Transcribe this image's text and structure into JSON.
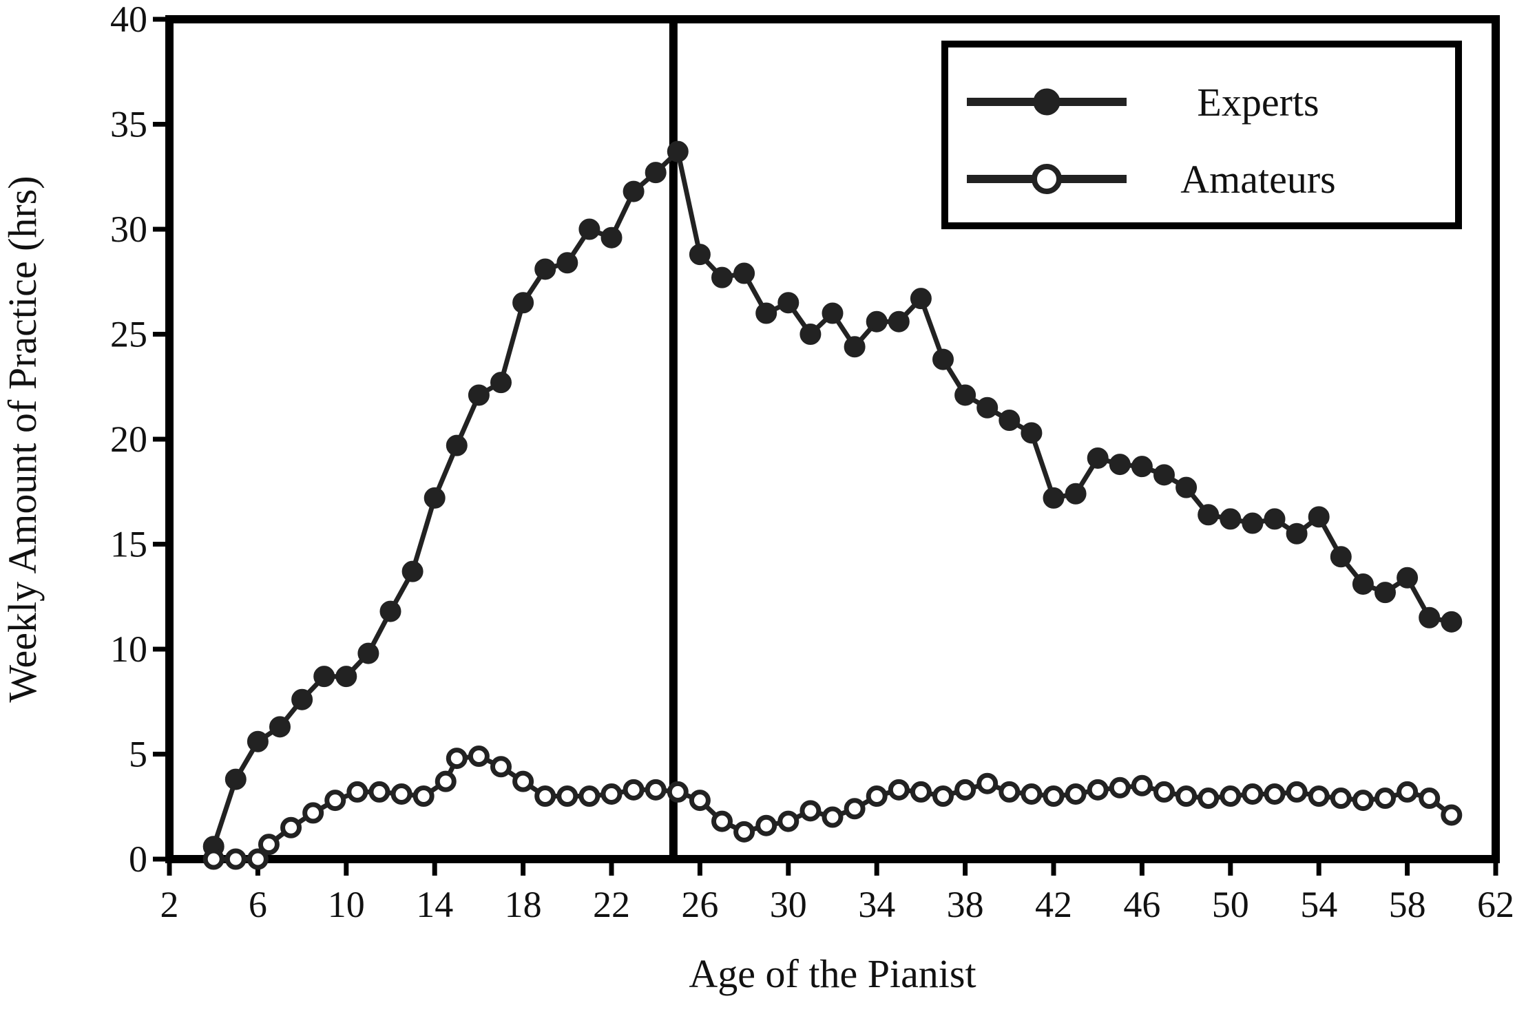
{
  "chart_data": {
    "type": "line",
    "title": "",
    "xlabel": "Age of the Pianist",
    "ylabel": "Weekly Amount of Practice (hrs)",
    "xlim": [
      2,
      62
    ],
    "ylim": [
      0,
      40
    ],
    "xticks": [
      2,
      6,
      10,
      14,
      18,
      22,
      26,
      30,
      34,
      38,
      42,
      46,
      50,
      54,
      58,
      62
    ],
    "yticks": [
      0,
      5,
      10,
      15,
      20,
      25,
      30,
      35,
      40
    ],
    "grid": false,
    "legend_position": "top-right",
    "reference_line_x": 24.8,
    "series": [
      {
        "name": "Experts",
        "marker": "filled-circle",
        "points": [
          [
            4,
            0.6
          ],
          [
            5,
            3.8
          ],
          [
            6,
            5.6
          ],
          [
            7,
            6.3
          ],
          [
            8,
            7.6
          ],
          [
            9,
            8.7
          ],
          [
            10,
            8.7
          ],
          [
            11,
            9.8
          ],
          [
            12,
            11.8
          ],
          [
            13,
            13.7
          ],
          [
            14,
            17.2
          ],
          [
            15,
            19.7
          ],
          [
            16,
            22.1
          ],
          [
            17,
            22.7
          ],
          [
            18,
            26.5
          ],
          [
            19,
            28.1
          ],
          [
            20,
            28.4
          ],
          [
            21,
            30.0
          ],
          [
            22,
            29.6
          ],
          [
            23,
            31.8
          ],
          [
            24,
            32.7
          ],
          [
            25,
            33.7
          ],
          [
            26,
            28.8
          ],
          [
            27,
            27.7
          ],
          [
            28,
            27.9
          ],
          [
            29,
            26.0
          ],
          [
            30,
            26.5
          ],
          [
            31,
            25.0
          ],
          [
            32,
            26.0
          ],
          [
            33,
            24.4
          ],
          [
            34,
            25.6
          ],
          [
            35,
            25.6
          ],
          [
            36,
            26.7
          ],
          [
            37,
            23.8
          ],
          [
            38,
            22.1
          ],
          [
            39,
            21.5
          ],
          [
            40,
            20.9
          ],
          [
            41,
            20.3
          ],
          [
            42,
            17.2
          ],
          [
            43,
            17.4
          ],
          [
            44,
            19.1
          ],
          [
            45,
            18.8
          ],
          [
            46,
            18.7
          ],
          [
            47,
            18.3
          ],
          [
            48,
            17.7
          ],
          [
            49,
            16.4
          ],
          [
            50,
            16.2
          ],
          [
            51,
            16.0
          ],
          [
            52,
            16.2
          ],
          [
            53,
            15.5
          ],
          [
            54,
            16.3
          ],
          [
            55,
            14.4
          ],
          [
            56,
            13.1
          ],
          [
            57,
            12.7
          ],
          [
            58,
            13.4
          ],
          [
            59,
            11.5
          ],
          [
            60,
            11.3
          ]
        ]
      },
      {
        "name": "Amateurs",
        "marker": "open-circle",
        "points": [
          [
            4,
            0.0
          ],
          [
            5,
            0.0
          ],
          [
            6,
            0.0
          ],
          [
            6.5,
            0.7
          ],
          [
            7.5,
            1.5
          ],
          [
            8.5,
            2.2
          ],
          [
            9.5,
            2.8
          ],
          [
            10.5,
            3.2
          ],
          [
            11.5,
            3.2
          ],
          [
            12.5,
            3.1
          ],
          [
            13.5,
            3.0
          ],
          [
            14.5,
            3.7
          ],
          [
            15,
            4.8
          ],
          [
            16,
            4.9
          ],
          [
            17,
            4.4
          ],
          [
            18,
            3.7
          ],
          [
            19,
            3.0
          ],
          [
            20,
            3.0
          ],
          [
            21,
            3.0
          ],
          [
            22,
            3.1
          ],
          [
            23,
            3.3
          ],
          [
            24,
            3.3
          ],
          [
            25,
            3.2
          ],
          [
            26,
            2.8
          ],
          [
            27,
            1.8
          ],
          [
            28,
            1.3
          ],
          [
            29,
            1.6
          ],
          [
            30,
            1.8
          ],
          [
            31,
            2.3
          ],
          [
            32,
            2.0
          ],
          [
            33,
            2.4
          ],
          [
            34,
            3.0
          ],
          [
            35,
            3.3
          ],
          [
            36,
            3.2
          ],
          [
            37,
            3.0
          ],
          [
            38,
            3.3
          ],
          [
            39,
            3.6
          ],
          [
            40,
            3.2
          ],
          [
            41,
            3.1
          ],
          [
            42,
            3.0
          ],
          [
            43,
            3.1
          ],
          [
            44,
            3.3
          ],
          [
            45,
            3.4
          ],
          [
            46,
            3.5
          ],
          [
            47,
            3.2
          ],
          [
            48,
            3.0
          ],
          [
            49,
            2.9
          ],
          [
            50,
            3.0
          ],
          [
            51,
            3.1
          ],
          [
            52,
            3.1
          ],
          [
            53,
            3.2
          ],
          [
            54,
            3.0
          ],
          [
            55,
            2.9
          ],
          [
            56,
            2.8
          ],
          [
            57,
            2.9
          ],
          [
            58,
            3.2
          ],
          [
            59,
            2.9
          ],
          [
            60,
            2.1
          ]
        ]
      }
    ],
    "colors": {
      "line": "#222222",
      "axis": "#000000",
      "open_marker_fill": "#ffffff"
    }
  }
}
